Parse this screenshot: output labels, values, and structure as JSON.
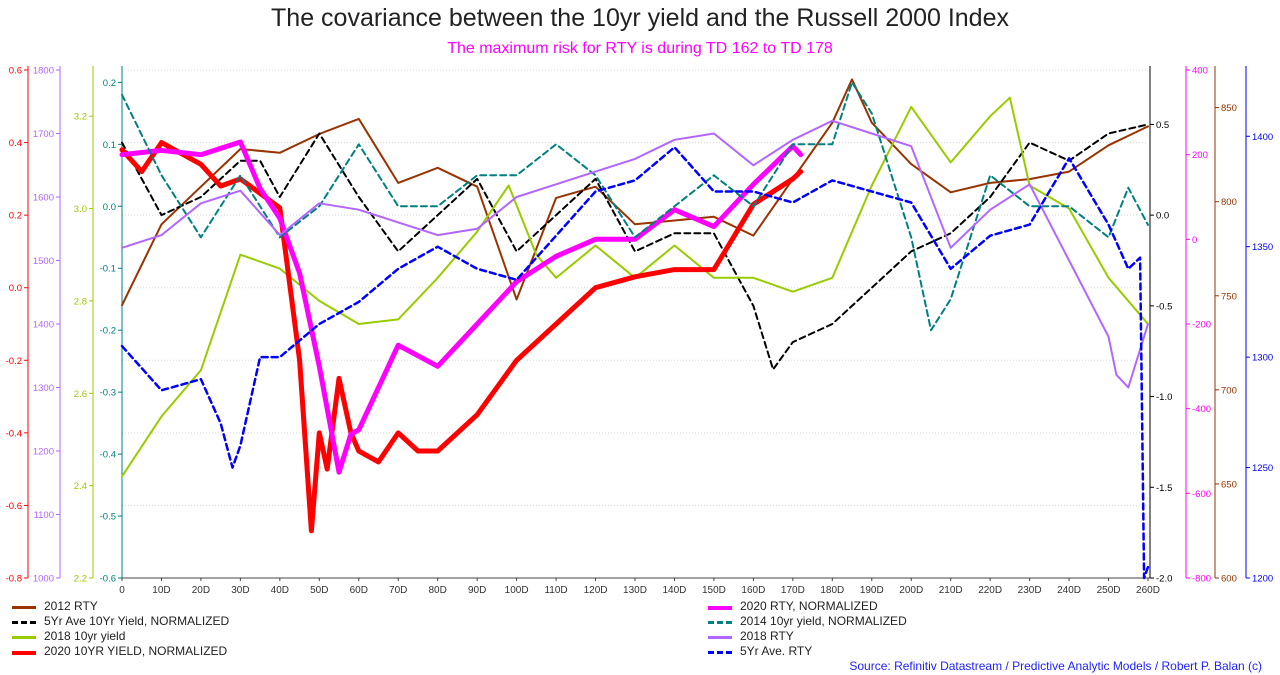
{
  "title": "The covariance between the 10yr yield and the Russell 2000 Index",
  "subtitle": "The maximum risk for RTY is during TD 162 to TD 178",
  "source": "Source: Refinitiv Datastream / Predictive Analytic Models  / Robert P. Balan (c)",
  "chart_data": {
    "type": "line",
    "x_range": [
      0,
      260
    ],
    "x_ticks": [
      "0",
      "10D",
      "20D",
      "30D",
      "40D",
      "50D",
      "60D",
      "70D",
      "80D",
      "90D",
      "100D",
      "110D",
      "120D",
      "130D",
      "140D",
      "150D",
      "160D",
      "170D",
      "180D",
      "190D",
      "200D",
      "210D",
      "220D",
      "230D",
      "240D",
      "250D",
      "260D"
    ],
    "grid": true,
    "axes": {
      "y2020yield": {
        "color": "#ff0000",
        "range": [
          -0.8,
          0.6
        ],
        "ticks": [
          "-0.8",
          "-0.6",
          "-0.4",
          "-0.2",
          "0.0",
          "0.2",
          "0.4",
          "0.6"
        ]
      },
      "y2018rty": {
        "color": "#b366ff",
        "range": [
          1000,
          1800
        ],
        "ticks": [
          "1000",
          "1100",
          "1200",
          "1300",
          "1400",
          "1500",
          "1600",
          "1700",
          "1800"
        ]
      },
      "y2018yield": {
        "color": "#99cc00",
        "range": [
          2.2,
          3.3
        ],
        "ticks": [
          "2.2",
          "2.4",
          "2.6",
          "2.8",
          "3.0",
          "3.2"
        ]
      },
      "y2014yield": {
        "color": "#008080",
        "range": [
          -0.6,
          0.22
        ],
        "ticks": [
          "-0.6",
          "-0.5",
          "-0.4",
          "-0.3",
          "-0.2",
          "-0.1",
          "0.0",
          "0.1",
          "0.2"
        ]
      },
      "y5yryield": {
        "color": "#000000",
        "range": [
          -2.0,
          0.8
        ],
        "ticks": [
          "-2.0",
          "-1.5",
          "-1.0",
          "-0.5",
          "0.0",
          "0.5"
        ]
      },
      "y2020rty": {
        "color": "#ff00ff",
        "range": [
          -800,
          400
        ],
        "ticks": [
          "-800",
          "-600",
          "-400",
          "-200",
          "0",
          "200",
          "400"
        ]
      },
      "y2012rty": {
        "color": "#993300",
        "range": [
          600,
          870
        ],
        "ticks": [
          "600",
          "650",
          "700",
          "750",
          "800",
          "850"
        ]
      },
      "y5yrrty": {
        "color": "#0000ff",
        "range": [
          1200,
          1430
        ],
        "ticks": [
          "1200",
          "1250",
          "1300",
          "1350",
          "1400"
        ]
      }
    },
    "series": [
      {
        "name": "2012 RTY",
        "color": "#993300",
        "width": 2,
        "dash": "solid",
        "axis": "y2012rty",
        "x": [
          0,
          10,
          20,
          30,
          40,
          50,
          55,
          60,
          70,
          80,
          90,
          100,
          110,
          120,
          130,
          140,
          150,
          160,
          170,
          180,
          185,
          190,
          200,
          210,
          220,
          230,
          240,
          250,
          260
        ],
        "y": [
          745,
          788,
          808,
          828,
          826,
          836,
          840,
          844,
          810,
          818,
          808,
          748,
          802,
          808,
          788,
          790,
          792,
          782,
          812,
          842,
          865,
          842,
          820,
          805,
          810,
          812,
          816,
          830,
          840
        ]
      },
      {
        "name": "5Yr Ave 10Yr Yield, NORMALIZED",
        "color": "#000000",
        "width": 2,
        "dash": "dash",
        "axis": "y5yryield",
        "x": [
          0,
          10,
          20,
          30,
          35,
          40,
          50,
          60,
          70,
          80,
          90,
          100,
          110,
          120,
          130,
          140,
          150,
          160,
          165,
          170,
          180,
          190,
          200,
          210,
          220,
          230,
          240,
          250,
          260
        ],
        "y": [
          0.4,
          0.0,
          0.1,
          0.3,
          0.3,
          0.1,
          0.45,
          0.1,
          -0.2,
          0.0,
          0.2,
          -0.2,
          0.0,
          0.2,
          -0.2,
          -0.1,
          -0.1,
          -0.5,
          -0.85,
          -0.7,
          -0.6,
          -0.4,
          -0.2,
          -0.1,
          0.1,
          0.4,
          0.3,
          0.45,
          0.5
        ]
      },
      {
        "name": "2018 10yr yield",
        "color": "#99cc00",
        "width": 2,
        "dash": "solid",
        "axis": "y2018yield",
        "x": [
          0,
          10,
          20,
          30,
          40,
          50,
          60,
          70,
          80,
          90,
          98,
          105,
          110,
          120,
          130,
          140,
          150,
          160,
          170,
          180,
          190,
          200,
          210,
          220,
          225,
          230,
          240,
          250,
          260
        ],
        "y": [
          2.42,
          2.55,
          2.65,
          2.9,
          2.87,
          2.8,
          2.75,
          2.76,
          2.85,
          2.95,
          3.05,
          2.9,
          2.85,
          2.92,
          2.85,
          2.92,
          2.85,
          2.85,
          2.82,
          2.85,
          3.05,
          3.22,
          3.1,
          3.2,
          3.24,
          3.05,
          3.0,
          2.85,
          2.75
        ]
      },
      {
        "name": "2020 10YR YIELD, NORMALIZED",
        "color": "#ff0000",
        "width": 5,
        "dash": "solid",
        "axis": "y2020yield",
        "x": [
          0,
          5,
          10,
          20,
          25,
          30,
          40,
          45,
          48,
          50,
          52,
          55,
          58,
          60,
          65,
          70,
          75,
          80,
          90,
          100,
          110,
          120,
          130,
          140,
          150,
          160,
          170,
          172
        ],
        "y": [
          0.38,
          0.32,
          0.4,
          0.34,
          0.28,
          0.3,
          0.22,
          -0.2,
          -0.67,
          -0.4,
          -0.5,
          -0.25,
          -0.4,
          -0.45,
          -0.48,
          -0.4,
          -0.45,
          -0.45,
          -0.35,
          -0.2,
          -0.1,
          0.0,
          0.03,
          0.05,
          0.05,
          0.23,
          0.3,
          0.32
        ]
      },
      {
        "name": "2020 RTY, NORMALIZED",
        "color": "#ff00ff",
        "width": 5,
        "dash": "solid",
        "axis": "y2020rty",
        "x": [
          0,
          10,
          20,
          30,
          35,
          40,
          45,
          50,
          52,
          55,
          58,
          60,
          70,
          80,
          90,
          100,
          110,
          120,
          130,
          140,
          150,
          160,
          170,
          172
        ],
        "y": [
          200,
          210,
          200,
          230,
          120,
          50,
          -80,
          -300,
          -400,
          -550,
          -460,
          -450,
          -250,
          -300,
          -200,
          -100,
          -40,
          0,
          0,
          70,
          30,
          130,
          220,
          200
        ]
      },
      {
        "name": "2014 10yr yield, NORMALIZED",
        "color": "#008080",
        "width": 2,
        "dash": "dash",
        "axis": "y2014yield",
        "x": [
          0,
          10,
          20,
          30,
          40,
          50,
          60,
          70,
          80,
          90,
          100,
          110,
          120,
          130,
          140,
          150,
          160,
          170,
          180,
          185,
          190,
          200,
          205,
          210,
          220,
          230,
          240,
          250,
          255,
          260
        ],
        "y": [
          0.18,
          0.05,
          -0.05,
          0.05,
          -0.05,
          0.0,
          0.1,
          0.0,
          0.0,
          0.05,
          0.05,
          0.1,
          0.05,
          -0.05,
          0.0,
          0.05,
          0.0,
          0.1,
          0.1,
          0.2,
          0.15,
          -0.05,
          -0.2,
          -0.15,
          0.05,
          0.0,
          0.0,
          -0.05,
          0.03,
          -0.03
        ]
      },
      {
        "name": "2018 RTY",
        "color": "#b366ff",
        "width": 2,
        "dash": "solid",
        "axis": "y2018rty",
        "x": [
          0,
          10,
          20,
          30,
          40,
          50,
          60,
          70,
          80,
          90,
          100,
          110,
          120,
          130,
          140,
          150,
          160,
          170,
          180,
          190,
          200,
          210,
          220,
          230,
          240,
          250,
          252,
          255,
          260
        ],
        "y": [
          1520,
          1540,
          1590,
          1610,
          1540,
          1590,
          1580,
          1560,
          1540,
          1550,
          1600,
          1620,
          1640,
          1660,
          1690,
          1700,
          1650,
          1690,
          1720,
          1700,
          1680,
          1520,
          1580,
          1620,
          1500,
          1380,
          1320,
          1300,
          1400
        ]
      },
      {
        "name": "5Yr Ave. RTY",
        "color": "#0000ff",
        "width": 2.5,
        "dash": "dash",
        "axis": "y5yrrty",
        "x": [
          0,
          10,
          20,
          25,
          28,
          30,
          35,
          40,
          50,
          55,
          60,
          70,
          80,
          90,
          100,
          110,
          120,
          130,
          140,
          150,
          160,
          170,
          180,
          190,
          200,
          210,
          220,
          230,
          240,
          250,
          255,
          258,
          259,
          260
        ],
        "y": [
          1305,
          1285,
          1290,
          1270,
          1250,
          1260,
          1300,
          1300,
          1315,
          1320,
          1325,
          1340,
          1350,
          1340,
          1335,
          1355,
          1375,
          1380,
          1395,
          1375,
          1375,
          1370,
          1380,
          1375,
          1370,
          1340,
          1355,
          1360,
          1390,
          1360,
          1340,
          1345,
          1200,
          1205
        ]
      }
    ],
    "legend": [
      {
        "label": "2012 RTY",
        "series": 0,
        "column": "left",
        "row": 0
      },
      {
        "label": "5Yr Ave 10Yr Yield, NORMALIZED",
        "series": 1,
        "column": "left",
        "row": 1
      },
      {
        "label": "2018 10yr yield",
        "series": 2,
        "column": "left",
        "row": 2
      },
      {
        "label": "2020 10YR YIELD, NORMALIZED",
        "series": 3,
        "column": "left",
        "row": 3
      },
      {
        "label": "2020 RTY, NORMALIZED",
        "series": 4,
        "column": "right",
        "row": 0
      },
      {
        "label": "2014 10yr yield, NORMALIZED",
        "series": 5,
        "column": "right",
        "row": 1
      },
      {
        "label": "2018 RTY",
        "series": 6,
        "column": "right",
        "row": 2
      },
      {
        "label": "5Yr Ave. RTY",
        "series": 7,
        "column": "right",
        "row": 3
      }
    ],
    "legend_placement": "bottom"
  }
}
